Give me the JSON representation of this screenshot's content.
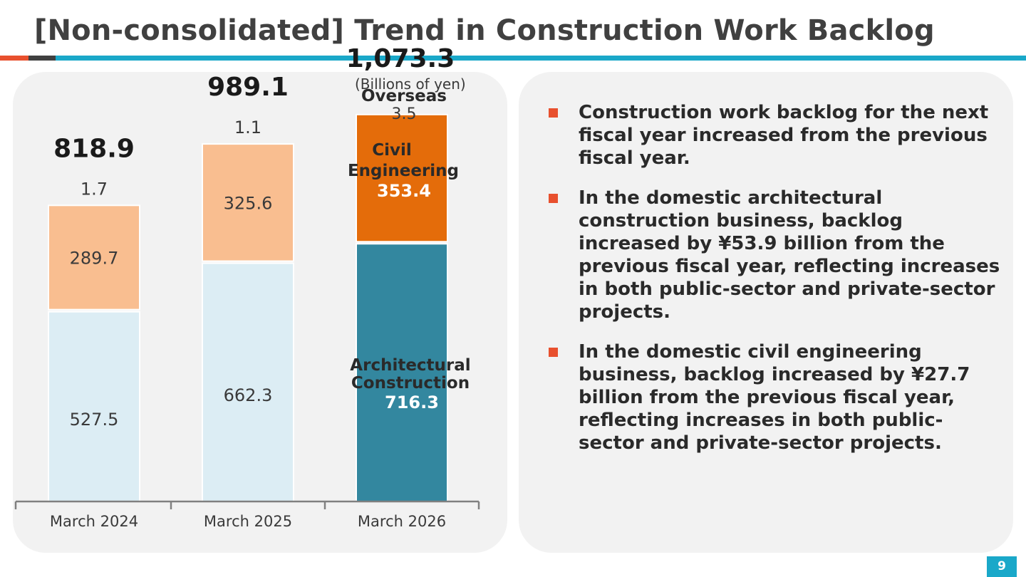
{
  "header": {
    "title": "[Non-consolidated] Trend in Construction Work Backlog"
  },
  "units_label": "(Billions of yen)",
  "chart_data": {
    "type": "bar",
    "stacked": true,
    "categories": [
      "March 2024",
      "March 2025",
      "March 2026"
    ],
    "totals": [
      "818.9",
      "989.1",
      "1,073.3"
    ],
    "series": [
      {
        "name": "Architectural Construction",
        "label_lines": [
          "Architectural",
          "Construction"
        ],
        "values": [
          527.5,
          662.3,
          716.3
        ]
      },
      {
        "name": "Civil Engineering",
        "label_lines": [
          "Civil",
          "Engineering"
        ],
        "values": [
          289.7,
          325.6,
          353.4
        ]
      },
      {
        "name": "Overseas",
        "label_lines": [
          "Overseas"
        ],
        "values": [
          1.7,
          1.1,
          3.5
        ]
      }
    ],
    "colors": {
      "architectural_past": "#dcedf4",
      "architectural_current": "#33879f",
      "civil_past": "#f9be90",
      "civil_current": "#e46c0a",
      "axis": "#808080",
      "text": "#3a3a3a"
    },
    "ylim": [
      0,
      1100
    ],
    "grid": false
  },
  "bullets": [
    "Construction work backlog for the next fiscal year increased from the previous fiscal year.",
    "In the domestic architectural construction business, backlog increased by ¥53.9 billion from the previous fiscal year, reflecting increases in both public-sector and private-sector projects.",
    "In the domestic civil engineering business, backlog increased by ¥27.7 billion from the previous fiscal year, reflecting increases in both public-sector and private-sector projects."
  ],
  "page_number": "9"
}
